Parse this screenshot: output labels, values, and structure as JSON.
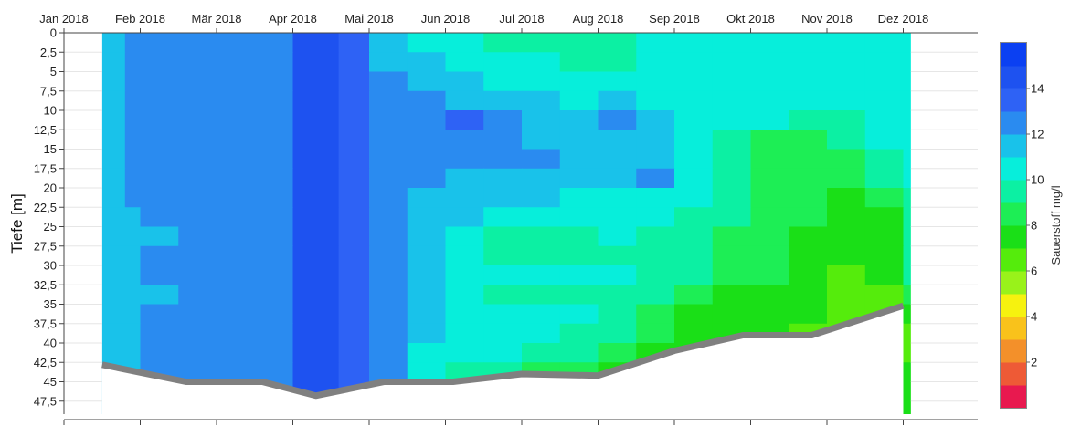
{
  "chart_data": {
    "type": "heatmap",
    "title": "",
    "ylabel": "Tiefe [m]",
    "colorbar_label": "Sauerstoff mg/l",
    "ylim": [
      0,
      47.5
    ],
    "x_ticks": [
      "Jan 2018",
      "Feb 2018",
      "Mär 2018",
      "Apr 2018",
      "Mai 2018",
      "Jun 2018",
      "Jul 2018",
      "Aug 2018",
      "Sep 2018",
      "Okt 2018",
      "Nov 2018",
      "Dez 2018"
    ],
    "y_ticks": [
      "0",
      "2,5",
      "5",
      "7,5",
      "10",
      "12,5",
      "15",
      "17,5",
      "20",
      "22,5",
      "25",
      "27,5",
      "30",
      "32,5",
      "35",
      "37,5",
      "40",
      "42,5",
      "45",
      "47,5"
    ],
    "colorbar_ticks": [
      "2",
      "4",
      "6",
      "8",
      "10",
      "12",
      "14"
    ],
    "colorscale": [
      {
        "from": 0,
        "to": 1,
        "color": "#e8194f"
      },
      {
        "from": 1,
        "to": 2,
        "color": "#ee5a36"
      },
      {
        "from": 2,
        "to": 3,
        "color": "#f3902a"
      },
      {
        "from": 3,
        "to": 4,
        "color": "#f9c21b"
      },
      {
        "from": 4,
        "to": 5,
        "color": "#f6f20f"
      },
      {
        "from": 5,
        "to": 6,
        "color": "#99f21a"
      },
      {
        "from": 6,
        "to": 7,
        "color": "#55ec0c"
      },
      {
        "from": 7,
        "to": 8,
        "color": "#1adf17"
      },
      {
        "from": 8,
        "to": 9,
        "color": "#1dee55"
      },
      {
        "from": 9,
        "to": 10,
        "color": "#0cf0a3"
      },
      {
        "from": 10,
        "to": 11,
        "color": "#07eedb"
      },
      {
        "from": 11,
        "to": 12,
        "color": "#19c2ea"
      },
      {
        "from": 12,
        "to": 13,
        "color": "#2a8bf0"
      },
      {
        "from": 13,
        "to": 14,
        "color": "#2e62f5"
      },
      {
        "from": 14,
        "to": 15,
        "color": "#1e52f0"
      },
      {
        "from": 15,
        "to": 16,
        "color": "#0b40f2"
      }
    ],
    "bottom_profile": {
      "months": [
        0.5,
        1.6,
        2.6,
        3.3,
        4.2,
        5.1,
        6.0,
        7.0,
        8.0,
        8.9,
        9.8,
        11.0
      ],
      "depths": [
        42.8,
        45.0,
        45.0,
        46.8,
        45.0,
        45.0,
        44.0,
        44.2,
        41.0,
        39.0,
        39.0,
        35.2
      ]
    },
    "rows_depth": [
      0,
      2.5,
      5,
      7.5,
      10,
      12.5,
      15,
      17.5,
      20,
      22.5,
      25,
      27.5,
      30,
      32.5,
      35,
      37.5,
      40,
      42.5,
      45,
      47.5
    ],
    "columns_month": [
      0.5,
      0.8,
      1.0,
      1.5,
      2.0,
      2.5,
      3.0,
      3.3,
      3.6,
      4.0,
      4.5,
      5.0,
      5.5,
      6.0,
      6.5,
      7.0,
      7.5,
      8.0,
      8.5,
      9.0,
      9.5,
      10.0,
      10.5,
      11.0
    ],
    "z": [
      [
        11.5,
        12.5,
        12.8,
        12.8,
        12.8,
        12.8,
        14.2,
        14.2,
        13.5,
        11.5,
        10.5,
        10.5,
        9.8,
        9.5,
        9.5,
        9.5,
        10.2,
        10.2,
        10.2,
        10.2,
        10.5,
        10.5,
        10.5,
        10.5
      ],
      [
        11.5,
        12.5,
        12.8,
        12.8,
        12.8,
        12.8,
        14.2,
        14.2,
        13.5,
        11.5,
        11.5,
        10.5,
        10.5,
        10.0,
        9.8,
        9.8,
        10.2,
        10.2,
        10.2,
        10.2,
        10.5,
        10.5,
        10.5,
        10.5
      ],
      [
        11.5,
        12.5,
        12.8,
        12.8,
        12.8,
        12.8,
        14.2,
        14.2,
        13.5,
        12.5,
        11.5,
        11.5,
        10.5,
        10.5,
        10.5,
        10.5,
        10.2,
        10.2,
        10.2,
        10.2,
        10.5,
        10.5,
        10.5,
        10.5
      ],
      [
        11.5,
        12.5,
        12.8,
        12.8,
        12.8,
        12.8,
        14.2,
        14.2,
        13.5,
        12.5,
        12.5,
        11.5,
        11.5,
        11.5,
        10.5,
        11.5,
        10.8,
        10.2,
        10.2,
        10.2,
        10.5,
        10.5,
        10.5,
        10.5
      ],
      [
        11.5,
        12.5,
        12.8,
        12.8,
        12.8,
        12.8,
        14.2,
        14.2,
        13.5,
        12.5,
        12.5,
        13.5,
        12.5,
        11.5,
        11.5,
        12.5,
        11.5,
        10.2,
        10.2,
        10.2,
        9.8,
        9.8,
        10.5,
        10.5
      ],
      [
        11.5,
        12.5,
        12.8,
        12.8,
        12.8,
        12.8,
        14.2,
        14.2,
        13.5,
        12.5,
        12.5,
        12.5,
        12.5,
        11.5,
        11.5,
        11.5,
        11.5,
        10.2,
        9.5,
        8.5,
        8.5,
        9.5,
        10.5,
        10.5
      ],
      [
        11.5,
        12.5,
        12.8,
        12.8,
        12.8,
        12.8,
        14.2,
        14.2,
        13.5,
        12.5,
        12.5,
        12.5,
        12.5,
        12.5,
        11.5,
        11.5,
        11.5,
        10.2,
        9.5,
        8.5,
        8.5,
        8.5,
        9.5,
        10.5
      ],
      [
        11.5,
        12.5,
        12.8,
        12.8,
        12.8,
        12.8,
        14.2,
        14.2,
        13.5,
        12.5,
        12.5,
        11.5,
        11.5,
        11.5,
        11.5,
        11.5,
        12.5,
        10.2,
        9.5,
        8.5,
        8.5,
        8.5,
        9.5,
        10.5
      ],
      [
        11.5,
        12.2,
        12.8,
        12.8,
        12.8,
        12.8,
        14.2,
        14.2,
        13.5,
        12.5,
        11.5,
        11.5,
        11.5,
        11.5,
        10.5,
        10.5,
        10.5,
        10.2,
        9.5,
        8.5,
        8.5,
        7.8,
        8.5,
        9.5
      ],
      [
        11.5,
        11.5,
        12.5,
        12.8,
        12.8,
        12.8,
        14.2,
        14.2,
        13.5,
        12.5,
        11.5,
        11.5,
        10.5,
        10.5,
        10.5,
        10.5,
        10.5,
        9.5,
        9.5,
        8.5,
        8.5,
        7.5,
        7.8,
        9.5
      ],
      [
        11.5,
        11.5,
        11.5,
        12.8,
        12.8,
        12.8,
        14.2,
        14.2,
        13.5,
        12.5,
        11.5,
        10.5,
        9.5,
        9.5,
        9.8,
        10.2,
        9.5,
        9.5,
        8.5,
        8.5,
        7.8,
        7.5,
        7.5,
        9.5
      ],
      [
        11.5,
        11.5,
        12.2,
        12.8,
        12.8,
        12.8,
        14.2,
        14.2,
        13.5,
        12.5,
        11.5,
        10.5,
        9.5,
        9.5,
        9.5,
        9.5,
        9.5,
        9.5,
        8.5,
        8.5,
        7.5,
        7.5,
        7.5,
        9.5
      ],
      [
        11.5,
        11.5,
        12.2,
        12.8,
        12.8,
        12.8,
        14.2,
        14.2,
        13.5,
        12.5,
        11.5,
        10.5,
        10.5,
        10.5,
        10.5,
        10.5,
        9.5,
        9.5,
        8.5,
        8.5,
        7.5,
        6.8,
        7.2,
        9.5
      ],
      [
        11.5,
        11.5,
        11.5,
        12.8,
        12.8,
        12.8,
        14.2,
        14.2,
        13.5,
        12.5,
        11.5,
        10.5,
        9.5,
        9.5,
        9.5,
        9.5,
        9.5,
        8.5,
        7.5,
        7.5,
        7.5,
        6.8,
        6.8,
        8.5
      ],
      [
        11.5,
        11.5,
        12.2,
        12.8,
        12.8,
        12.8,
        14.2,
        14.2,
        13.5,
        12.5,
        11.5,
        10.5,
        10.5,
        10.5,
        10.5,
        9.5,
        8.5,
        7.5,
        7.5,
        7.5,
        7.5,
        6.5,
        6.5,
        7.5
      ],
      [
        11.5,
        11.5,
        12.2,
        12.8,
        12.8,
        12.8,
        14.2,
        14.2,
        13.5,
        12.5,
        11.5,
        10.5,
        10.5,
        10.5,
        9.5,
        9.5,
        8.5,
        7.5,
        7.5,
        7.5,
        6.5,
        6.5,
        5.5,
        6.5
      ],
      [
        11.5,
        11.5,
        12.2,
        12.8,
        12.8,
        12.8,
        14.2,
        14.2,
        13.5,
        12.5,
        10.5,
        10.5,
        10.5,
        9.5,
        9.5,
        8.5,
        7.5,
        7.5,
        7.5,
        7.5,
        7.5,
        7.5,
        6.5,
        6.5
      ],
      [
        11.5,
        11.5,
        12.2,
        12.8,
        12.8,
        12.8,
        14.2,
        14.2,
        13.5,
        12.5,
        10.5,
        9.5,
        9.5,
        8.5,
        8.5,
        7.5,
        7.5,
        7.5,
        7.5,
        7.5,
        7.5,
        7.5,
        7.5,
        7.5
      ],
      [
        11.5,
        11.5,
        12.2,
        12.8,
        12.8,
        12.8,
        14.2,
        14.2,
        13.5,
        12.5,
        9.5,
        8.5,
        8.5,
        7.5,
        7.5,
        7.5,
        7.5,
        7.5,
        7.5,
        7.5,
        7.5,
        7.5,
        7.5,
        7.5
      ],
      [
        11.5,
        11.5,
        12.2,
        12.8,
        12.8,
        12.8,
        14.2,
        14.2,
        13.5,
        12.5,
        9.5,
        8.5,
        8.5,
        7.5,
        7.5,
        7.5,
        7.5,
        7.5,
        7.5,
        7.5,
        7.5,
        7.5,
        7.5,
        7.5
      ]
    ]
  }
}
